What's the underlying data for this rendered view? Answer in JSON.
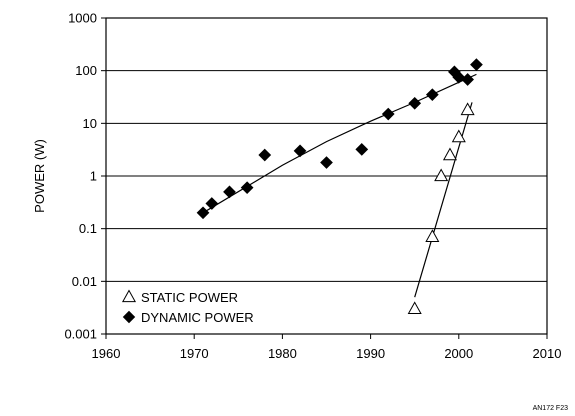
{
  "chart_data": {
    "type": "scatter",
    "title": "",
    "xlabel": "",
    "ylabel": "POWER (W)",
    "x_scale": "linear",
    "y_scale": "log",
    "xlim": [
      1960,
      2010
    ],
    "ylim": [
      0.001,
      1000
    ],
    "x_ticks": [
      1960,
      1970,
      1980,
      1990,
      2000,
      2010
    ],
    "y_ticks": [
      1000,
      100,
      10,
      1,
      0.1,
      0.01,
      0.001
    ],
    "x_tick_labels": [
      "1960",
      "1970",
      "1980",
      "1990",
      "2000",
      "2010"
    ],
    "y_tick_labels": [
      "1000",
      "100",
      "10",
      "1",
      "0.1",
      "0.01",
      "0.001"
    ],
    "grid": "horizontal major gridlines",
    "legend_position": "bottom-left",
    "series": [
      {
        "name": "STATIC POWER",
        "marker": "open-triangle",
        "color": "#000000",
        "points": [
          {
            "x": 1995,
            "y": 0.003
          },
          {
            "x": 1997,
            "y": 0.07
          },
          {
            "x": 1998,
            "y": 1.0
          },
          {
            "x": 1999,
            "y": 2.5
          },
          {
            "x": 2000,
            "y": 5.5
          },
          {
            "x": 2001,
            "y": 18
          }
        ],
        "trend": [
          {
            "x": 1995,
            "y": 0.005
          },
          {
            "x": 2001.5,
            "y": 25
          }
        ]
      },
      {
        "name": "DYNAMIC POWER",
        "marker": "filled-diamond",
        "color": "#000000",
        "points": [
          {
            "x": 1971,
            "y": 0.2
          },
          {
            "x": 1972,
            "y": 0.3
          },
          {
            "x": 1974,
            "y": 0.5
          },
          {
            "x": 1976,
            "y": 0.6
          },
          {
            "x": 1978,
            "y": 2.5
          },
          {
            "x": 1982,
            "y": 3.0
          },
          {
            "x": 1985,
            "y": 1.8
          },
          {
            "x": 1989,
            "y": 3.2
          },
          {
            "x": 1992,
            "y": 15
          },
          {
            "x": 1995,
            "y": 24
          },
          {
            "x": 1997,
            "y": 35
          },
          {
            "x": 1999.5,
            "y": 95
          },
          {
            "x": 2000,
            "y": 75
          },
          {
            "x": 2001,
            "y": 68
          },
          {
            "x": 2002,
            "y": 130
          }
        ],
        "trend": [
          {
            "x": 1971,
            "y": 0.2
          },
          {
            "x": 1980,
            "y": 1.6
          },
          {
            "x": 1985,
            "y": 4.5
          },
          {
            "x": 1990,
            "y": 11
          },
          {
            "x": 1995,
            "y": 25
          },
          {
            "x": 2000,
            "y": 60
          },
          {
            "x": 2002,
            "y": 85
          }
        ]
      }
    ],
    "annotations": [
      "AN172 F23"
    ]
  }
}
